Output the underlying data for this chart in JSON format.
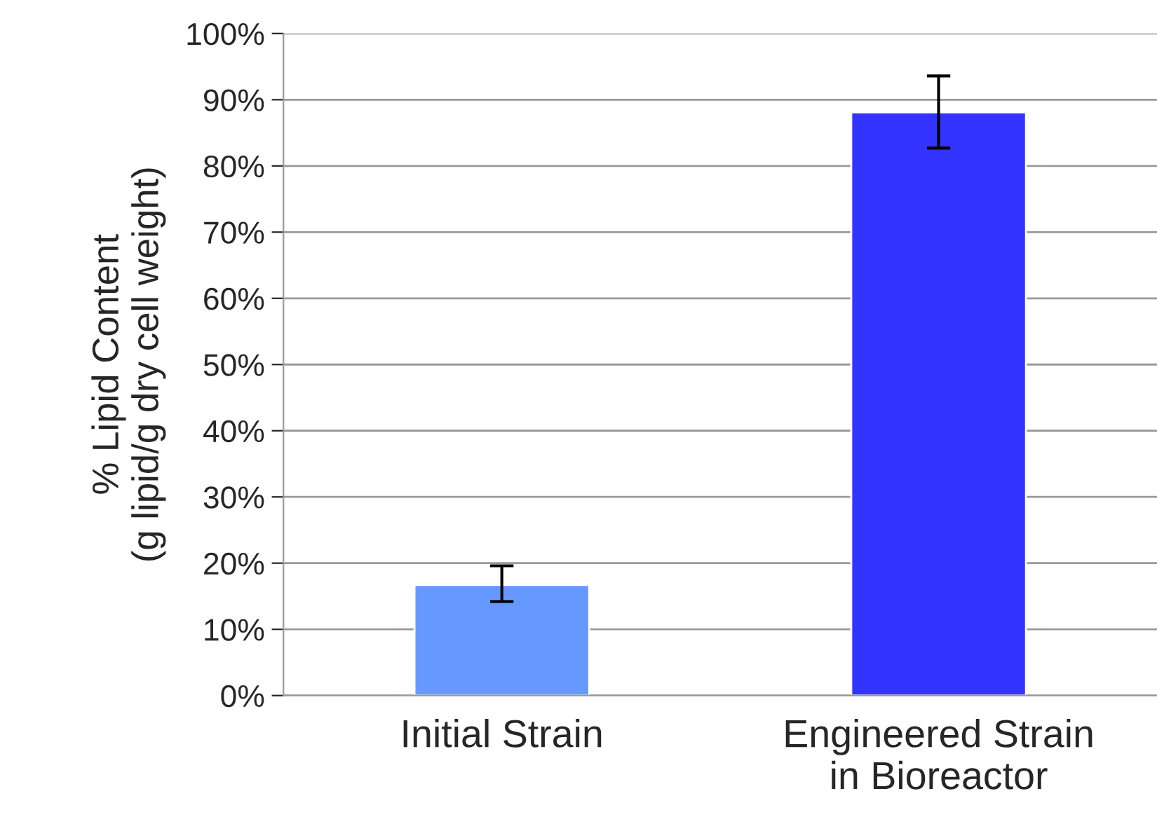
{
  "chart_data": {
    "type": "bar",
    "ylabel": "% Lipid Content\n(g lipid/g dry cell weight)",
    "categories": [
      "Initial Strain",
      "Engineered Strain\nin Bioreactor"
    ],
    "values": [
      16.7,
      88.1
    ],
    "colors": [
      "#6699ff",
      "#3333ff"
    ],
    "errors": [
      [
        14.2,
        19.6
      ],
      [
        82.7,
        93.6
      ]
    ],
    "ylim": [
      0,
      100
    ],
    "yticks": [
      {
        "value": 0,
        "label": "0%"
      },
      {
        "value": 10,
        "label": "10%"
      },
      {
        "value": 20,
        "label": "20%"
      },
      {
        "value": 30,
        "label": "30%"
      },
      {
        "value": 40,
        "label": "40%"
      },
      {
        "value": 50,
        "label": "50%"
      },
      {
        "value": 60,
        "label": "60%"
      },
      {
        "value": 70,
        "label": "70%"
      },
      {
        "value": 80,
        "label": "80%"
      },
      {
        "value": 90,
        "label": "90%"
      },
      {
        "value": 100,
        "label": "100%"
      }
    ],
    "grid": "y"
  }
}
